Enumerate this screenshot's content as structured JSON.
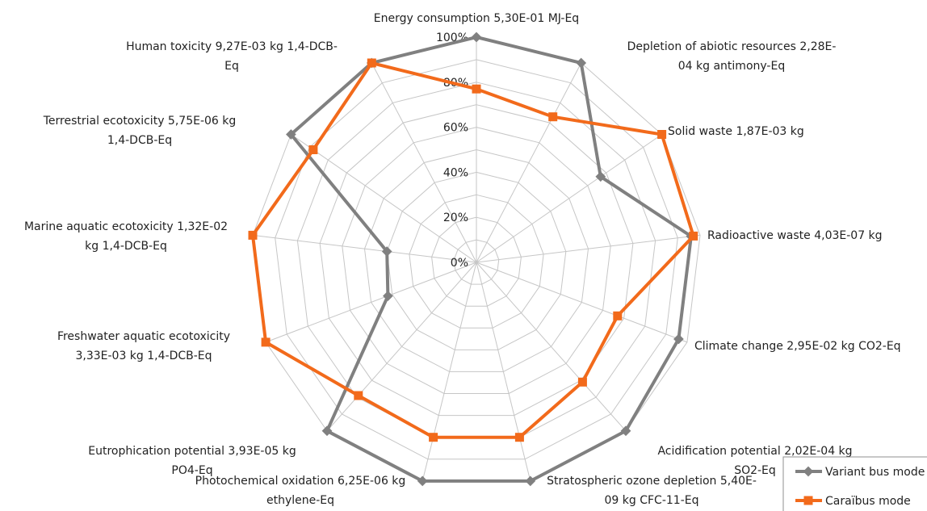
{
  "chart_data": {
    "type": "radar",
    "categories": [
      "Energy consumption 5,30E-01 MJ-Eq",
      "Depletion of abiotic resources 2,28E-04 kg antimony-Eq",
      "Solid waste 1,87E-03 kg",
      "Radioactive waste 4,03E-07 kg",
      "Climate change 2,95E-02 kg CO2-Eq",
      "Acidification potential 2,02E-04 kg SO2-Eq",
      "Stratospheric ozone depletion 5,40E-09 kg CFC-11-Eq",
      "Photochemical oxidation 6,25E-06 kg ethylene-Eq",
      "Eutrophication potential 3,93E-05 kg PO4-Eq",
      "Freshwater aquatic ecotoxicity 3,33E-03 kg 1,4-DCB-Eq",
      "Marine aquatic ecotoxicity 1,32E-02 kg 1,4-DCB-Eq",
      "Terrestrial ecotoxicity 5,75E-06 kg 1,4-DCB-Eq",
      "Human toxicity 9,27E-03 kg 1,4-DCB-Eq"
    ],
    "category_lines": [
      [
        "Energy consumption 5,30E-01 MJ-Eq"
      ],
      [
        "Depletion of abiotic resources 2,28E-",
        "04 kg antimony-Eq"
      ],
      [
        "Solid waste 1,87E-03 kg"
      ],
      [
        "Radioactive waste 4,03E-07 kg"
      ],
      [
        "Climate change 2,95E-02 kg CO2-Eq"
      ],
      [
        "Acidification potential 2,02E-04 kg",
        "SO2-Eq"
      ],
      [
        "Stratospheric ozone depletion 5,40E-",
        "09 kg CFC-11-Eq"
      ],
      [
        "Photochemical oxidation 6,25E-06 kg",
        "ethylene-Eq"
      ],
      [
        "Eutrophication potential 3,93E-05 kg",
        "PO4-Eq"
      ],
      [
        "Freshwater aquatic ecotoxicity",
        "3,33E-03 kg 1,4-DCB-Eq"
      ],
      [
        "Marine aquatic ecotoxicity 1,32E-02",
        "kg 1,4-DCB-Eq"
      ],
      [
        "Terrestrial ecotoxicity 5,75E-06 kg",
        "1,4-DCB-Eq"
      ],
      [
        "Human toxicity 9,27E-03 kg 1,4-DCB-",
        "Eq"
      ]
    ],
    "ticks": [
      "0%",
      "20%",
      "40%",
      "60%",
      "80%",
      "100%"
    ],
    "tick_values": [
      0,
      20,
      40,
      60,
      80,
      100
    ],
    "range": [
      0,
      100
    ],
    "grid": true,
    "legend_position": "bottom-right",
    "series": [
      {
        "name": "Variant bus mode",
        "color": "#808080",
        "marker": "diamond",
        "values": [
          100,
          100,
          67,
          96,
          96,
          100,
          100,
          100,
          100,
          42,
          40,
          100,
          100
        ]
      },
      {
        "name": "Caraïbus mode",
        "color": "#f26a1b",
        "marker": "square",
        "values": [
          77,
          73,
          100,
          97,
          67,
          71,
          80,
          80,
          79,
          100,
          100,
          88,
          100
        ]
      }
    ]
  }
}
